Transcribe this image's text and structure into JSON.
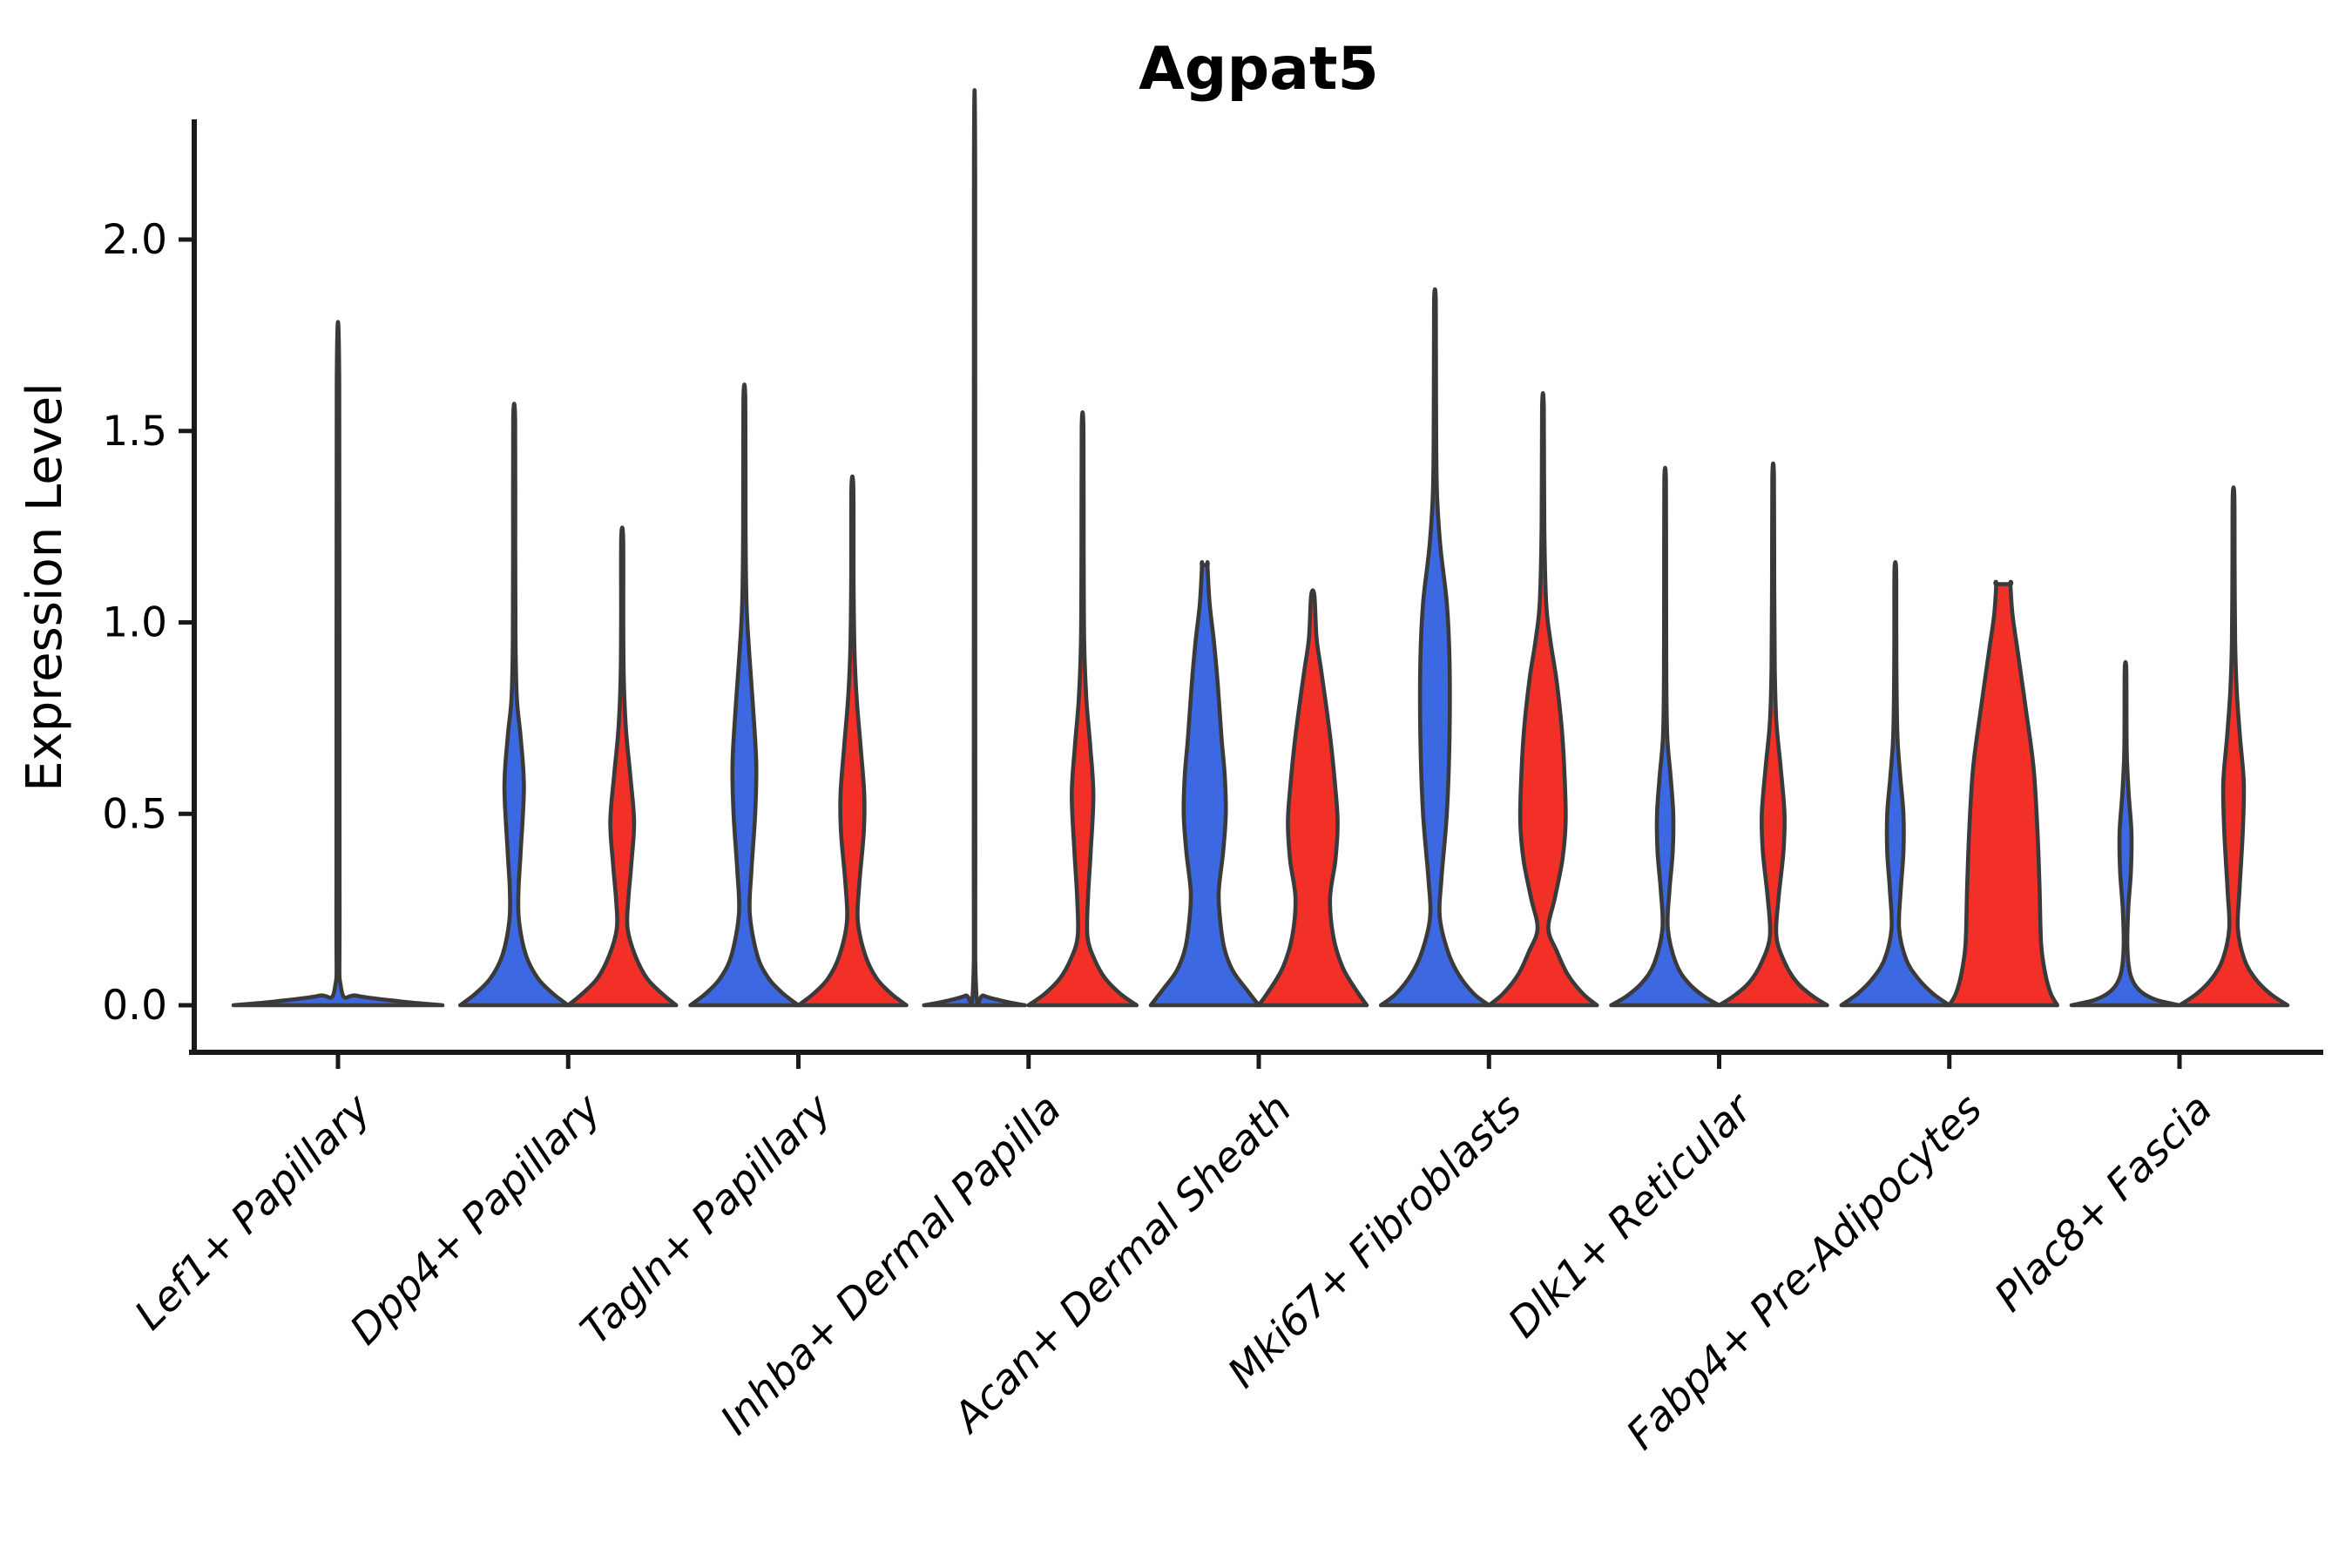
{
  "chart_data": {
    "type": "violin",
    "title": "Agpat5",
    "ylabel": "Expression Level",
    "xlabel": "",
    "yticks": [
      "0.0",
      "0.5",
      "1.0",
      "1.5",
      "2.0"
    ],
    "ytick_values": [
      0.0,
      0.5,
      1.0,
      1.5,
      2.0
    ],
    "ylim": [
      0,
      2.3
    ],
    "grid": false,
    "legend_position": "none",
    "categories": [
      "Lef1+ Papillary",
      "Dpp4+ Papillary",
      "Tagln+ Papillary",
      "Inhba+ Dermal Papilla",
      "Acan+ Dermal Sheath",
      "Mki67+ Fibroblasts",
      "Dlk1+ Reticular",
      "Fabp4+ Pre-Adipocytes",
      "Plac8+ Fascia"
    ],
    "group_colors": {
      "blue": "#3C69E1",
      "red": "#F23028"
    },
    "edge_color": "#3a3a3a",
    "violins": [
      {
        "category": 0,
        "side": "center",
        "color": "blue",
        "max": 1.62,
        "halfwidth": 120,
        "flat_top": false,
        "profile": [
          [
            0,
            1.0
          ],
          [
            0.01,
            0.6
          ],
          [
            0.025,
            0.18
          ],
          [
            0.045,
            0.03
          ],
          [
            0.3,
            0.015
          ],
          [
            1.62,
            0.012
          ]
        ]
      },
      {
        "category": 1,
        "side": "left",
        "color": "blue",
        "max": 1.53,
        "halfwidth": 62,
        "flat_top": false,
        "profile": [
          [
            0,
            1.0
          ],
          [
            0.03,
            0.72
          ],
          [
            0.07,
            0.44
          ],
          [
            0.13,
            0.22
          ],
          [
            0.22,
            0.09
          ],
          [
            0.3,
            0.08
          ],
          [
            0.4,
            0.12
          ],
          [
            0.57,
            0.18
          ],
          [
            0.7,
            0.12
          ],
          [
            0.8,
            0.05
          ],
          [
            0.95,
            0.025
          ],
          [
            1.2,
            0.02
          ],
          [
            1.53,
            0.018
          ]
        ]
      },
      {
        "category": 1,
        "side": "right",
        "color": "red",
        "max": 1.22,
        "halfwidth": 62,
        "flat_top": false,
        "profile": [
          [
            0,
            1.0
          ],
          [
            0.03,
            0.74
          ],
          [
            0.07,
            0.46
          ],
          [
            0.13,
            0.24
          ],
          [
            0.2,
            0.1
          ],
          [
            0.27,
            0.11
          ],
          [
            0.37,
            0.17
          ],
          [
            0.48,
            0.22
          ],
          [
            0.6,
            0.15
          ],
          [
            0.72,
            0.07
          ],
          [
            0.85,
            0.03
          ],
          [
            1.0,
            0.02
          ],
          [
            1.22,
            0.018
          ]
        ]
      },
      {
        "category": 2,
        "side": "left",
        "color": "blue",
        "max": 1.58,
        "halfwidth": 62,
        "flat_top": false,
        "profile": [
          [
            0,
            1.0
          ],
          [
            0.03,
            0.72
          ],
          [
            0.07,
            0.45
          ],
          [
            0.13,
            0.24
          ],
          [
            0.24,
            0.1
          ],
          [
            0.35,
            0.13
          ],
          [
            0.5,
            0.2
          ],
          [
            0.63,
            0.22
          ],
          [
            0.78,
            0.16
          ],
          [
            0.92,
            0.09
          ],
          [
            1.05,
            0.04
          ],
          [
            1.25,
            0.022
          ],
          [
            1.58,
            0.018
          ]
        ]
      },
      {
        "category": 2,
        "side": "right",
        "color": "red",
        "max": 1.35,
        "halfwidth": 62,
        "flat_top": false,
        "profile": [
          [
            0,
            1.0
          ],
          [
            0.03,
            0.72
          ],
          [
            0.07,
            0.45
          ],
          [
            0.13,
            0.24
          ],
          [
            0.22,
            0.1
          ],
          [
            0.32,
            0.13
          ],
          [
            0.45,
            0.21
          ],
          [
            0.55,
            0.22
          ],
          [
            0.68,
            0.15
          ],
          [
            0.8,
            0.08
          ],
          [
            0.92,
            0.04
          ],
          [
            1.1,
            0.022
          ],
          [
            1.35,
            0.018
          ]
        ]
      },
      {
        "category": 3,
        "side": "left",
        "color": "blue",
        "max": 2.18,
        "halfwidth": 58,
        "flat_top": false,
        "profile": [
          [
            0,
            1.0
          ],
          [
            0.01,
            0.6
          ],
          [
            0.025,
            0.18
          ],
          [
            0.045,
            0.03
          ],
          [
            0.5,
            0.015
          ],
          [
            2.18,
            0.012
          ]
        ]
      },
      {
        "category": 3,
        "side": "right",
        "color": "red",
        "max": 1.51,
        "halfwidth": 62,
        "flat_top": false,
        "profile": [
          [
            0,
            1.0
          ],
          [
            0.03,
            0.7
          ],
          [
            0.07,
            0.42
          ],
          [
            0.12,
            0.22
          ],
          [
            0.18,
            0.09
          ],
          [
            0.28,
            0.1
          ],
          [
            0.4,
            0.15
          ],
          [
            0.55,
            0.2
          ],
          [
            0.68,
            0.14
          ],
          [
            0.8,
            0.07
          ],
          [
            0.95,
            0.03
          ],
          [
            1.2,
            0.02
          ],
          [
            1.51,
            0.016
          ]
        ]
      },
      {
        "category": 4,
        "side": "left",
        "color": "blue",
        "max": 1.15,
        "halfwidth": 62,
        "flat_top": true,
        "profile": [
          [
            0,
            1.0
          ],
          [
            0.04,
            0.78
          ],
          [
            0.09,
            0.52
          ],
          [
            0.15,
            0.36
          ],
          [
            0.23,
            0.28
          ],
          [
            0.3,
            0.26
          ],
          [
            0.4,
            0.34
          ],
          [
            0.5,
            0.39
          ],
          [
            0.6,
            0.37
          ],
          [
            0.7,
            0.31
          ],
          [
            0.84,
            0.24
          ],
          [
            0.95,
            0.17
          ],
          [
            1.05,
            0.09
          ],
          [
            1.15,
            0.05
          ]
        ]
      },
      {
        "category": 4,
        "side": "right",
        "color": "red",
        "max": 1.07,
        "halfwidth": 62,
        "flat_top": false,
        "profile": [
          [
            0,
            1.0
          ],
          [
            0.04,
            0.8
          ],
          [
            0.1,
            0.55
          ],
          [
            0.18,
            0.38
          ],
          [
            0.28,
            0.32
          ],
          [
            0.38,
            0.42
          ],
          [
            0.48,
            0.46
          ],
          [
            0.58,
            0.41
          ],
          [
            0.68,
            0.34
          ],
          [
            0.78,
            0.25
          ],
          [
            0.88,
            0.15
          ],
          [
            0.96,
            0.07
          ],
          [
            1.07,
            0.03
          ]
        ]
      },
      {
        "category": 5,
        "side": "left",
        "color": "blue",
        "max": 1.84,
        "halfwidth": 62,
        "flat_top": false,
        "profile": [
          [
            0,
            1.0
          ],
          [
            0.03,
            0.72
          ],
          [
            0.08,
            0.44
          ],
          [
            0.14,
            0.24
          ],
          [
            0.23,
            0.09
          ],
          [
            0.33,
            0.12
          ],
          [
            0.5,
            0.22
          ],
          [
            0.7,
            0.27
          ],
          [
            0.9,
            0.27
          ],
          [
            1.05,
            0.22
          ],
          [
            1.2,
            0.1
          ],
          [
            1.35,
            0.035
          ],
          [
            1.6,
            0.02
          ],
          [
            1.84,
            0.016
          ]
        ]
      },
      {
        "category": 5,
        "side": "right",
        "color": "red",
        "max": 1.56,
        "halfwidth": 62,
        "flat_top": false,
        "profile": [
          [
            0,
            1.0
          ],
          [
            0.03,
            0.74
          ],
          [
            0.08,
            0.46
          ],
          [
            0.14,
            0.26
          ],
          [
            0.2,
            0.1
          ],
          [
            0.28,
            0.22
          ],
          [
            0.38,
            0.36
          ],
          [
            0.48,
            0.42
          ],
          [
            0.6,
            0.4
          ],
          [
            0.72,
            0.35
          ],
          [
            0.85,
            0.25
          ],
          [
            0.95,
            0.14
          ],
          [
            1.05,
            0.06
          ],
          [
            1.25,
            0.025
          ],
          [
            1.56,
            0.016
          ]
        ]
      },
      {
        "category": 6,
        "side": "left",
        "color": "blue",
        "max": 1.37,
        "halfwidth": 62,
        "flat_top": false,
        "profile": [
          [
            0,
            1.0
          ],
          [
            0.025,
            0.7
          ],
          [
            0.06,
            0.42
          ],
          [
            0.11,
            0.2
          ],
          [
            0.2,
            0.05
          ],
          [
            0.3,
            0.08
          ],
          [
            0.4,
            0.14
          ],
          [
            0.5,
            0.15
          ],
          [
            0.6,
            0.1
          ],
          [
            0.7,
            0.04
          ],
          [
            0.85,
            0.022
          ],
          [
            1.1,
            0.018
          ],
          [
            1.37,
            0.015
          ]
        ]
      },
      {
        "category": 6,
        "side": "right",
        "color": "red",
        "max": 1.38,
        "halfwidth": 62,
        "flat_top": false,
        "profile": [
          [
            0,
            1.0
          ],
          [
            0.025,
            0.72
          ],
          [
            0.06,
            0.44
          ],
          [
            0.11,
            0.22
          ],
          [
            0.18,
            0.06
          ],
          [
            0.28,
            0.1
          ],
          [
            0.4,
            0.19
          ],
          [
            0.5,
            0.21
          ],
          [
            0.62,
            0.14
          ],
          [
            0.74,
            0.06
          ],
          [
            0.88,
            0.03
          ],
          [
            1.1,
            0.02
          ],
          [
            1.38,
            0.015
          ]
        ]
      },
      {
        "category": 7,
        "side": "left",
        "color": "blue",
        "max": 1.14,
        "halfwidth": 62,
        "flat_top": false,
        "profile": [
          [
            0,
            1.0
          ],
          [
            0.03,
            0.7
          ],
          [
            0.07,
            0.42
          ],
          [
            0.12,
            0.2
          ],
          [
            0.2,
            0.07
          ],
          [
            0.3,
            0.1
          ],
          [
            0.4,
            0.15
          ],
          [
            0.5,
            0.15
          ],
          [
            0.6,
            0.09
          ],
          [
            0.7,
            0.04
          ],
          [
            0.85,
            0.022
          ],
          [
            1.0,
            0.018
          ],
          [
            1.14,
            0.015
          ]
        ]
      },
      {
        "category": 7,
        "side": "right",
        "color": "red",
        "max": 1.1,
        "halfwidth": 62,
        "flat_top": true,
        "profile": [
          [
            0,
            1.0
          ],
          [
            0.03,
            0.88
          ],
          [
            0.08,
            0.78
          ],
          [
            0.16,
            0.7
          ],
          [
            0.31,
            0.67
          ],
          [
            0.46,
            0.63
          ],
          [
            0.62,
            0.56
          ],
          [
            0.77,
            0.42
          ],
          [
            0.92,
            0.27
          ],
          [
            1.02,
            0.17
          ],
          [
            1.1,
            0.13
          ]
        ]
      },
      {
        "category": 8,
        "side": "left",
        "color": "blue",
        "max": 0.88,
        "halfwidth": 62,
        "flat_top": false,
        "profile": [
          [
            0,
            1.0
          ],
          [
            0.015,
            0.55
          ],
          [
            0.04,
            0.25
          ],
          [
            0.08,
            0.09
          ],
          [
            0.15,
            0.035
          ],
          [
            0.25,
            0.05
          ],
          [
            0.35,
            0.1
          ],
          [
            0.45,
            0.11
          ],
          [
            0.55,
            0.06
          ],
          [
            0.65,
            0.025
          ],
          [
            0.75,
            0.018
          ],
          [
            0.88,
            0.014
          ]
        ]
      },
      {
        "category": 8,
        "side": "right",
        "color": "red",
        "max": 1.33,
        "halfwidth": 62,
        "flat_top": false,
        "profile": [
          [
            0,
            1.0
          ],
          [
            0.03,
            0.68
          ],
          [
            0.07,
            0.4
          ],
          [
            0.12,
            0.2
          ],
          [
            0.2,
            0.08
          ],
          [
            0.3,
            0.11
          ],
          [
            0.45,
            0.17
          ],
          [
            0.58,
            0.19
          ],
          [
            0.7,
            0.12
          ],
          [
            0.82,
            0.06
          ],
          [
            0.95,
            0.03
          ],
          [
            1.15,
            0.02
          ],
          [
            1.33,
            0.015
          ]
        ]
      }
    ]
  }
}
